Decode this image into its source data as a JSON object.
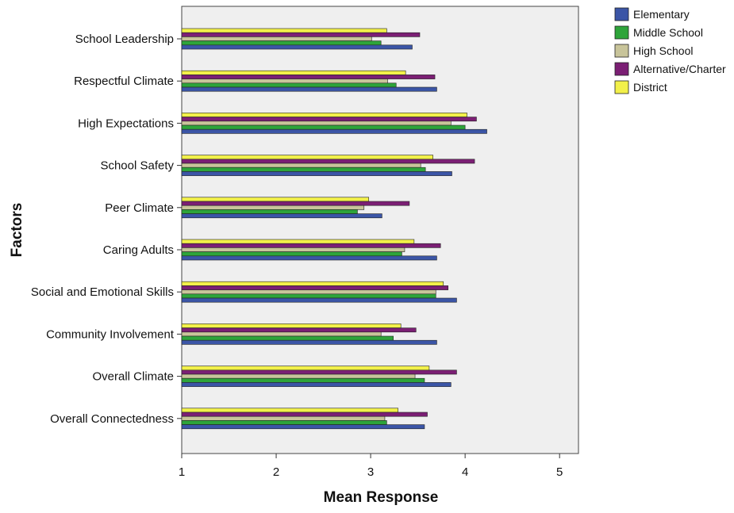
{
  "chart_data": {
    "type": "bar",
    "orientation": "horizontal",
    "title": "",
    "xlabel": "Mean Response",
    "ylabel": "Factors",
    "xlim": [
      1,
      5.2
    ],
    "xticks": [
      1,
      2,
      3,
      4,
      5
    ],
    "grid": false,
    "legend_position": "top-right",
    "categories": [
      "School Leadership",
      "Respectful Climate",
      "High Expectations",
      "School Safety",
      "Peer Climate",
      "Caring Adults",
      "Social and Emotional Skills",
      "Community Involvement",
      "Overall Climate",
      "Overall Connectedness"
    ],
    "series": [
      {
        "name": "Elementary",
        "color": "#3b55a6",
        "values": [
          3.44,
          3.7,
          4.23,
          3.86,
          3.12,
          3.7,
          3.91,
          3.7,
          3.85,
          3.57
        ]
      },
      {
        "name": "Middle School",
        "color": "#2ea43a",
        "values": [
          3.11,
          3.27,
          4.0,
          3.58,
          2.86,
          3.33,
          3.69,
          3.24,
          3.57,
          3.17
        ]
      },
      {
        "name": "High School",
        "color": "#c8c49a",
        "values": [
          3.01,
          3.18,
          3.85,
          3.53,
          2.93,
          3.36,
          3.69,
          3.11,
          3.47,
          3.15
        ]
      },
      {
        "name": "Alternative/Charter",
        "color": "#7b1f74",
        "values": [
          3.52,
          3.68,
          4.12,
          4.1,
          3.41,
          3.74,
          3.82,
          3.48,
          3.91,
          3.6
        ]
      },
      {
        "name": "District",
        "color": "#f2f04a",
        "values": [
          3.17,
          3.37,
          4.02,
          3.66,
          2.98,
          3.46,
          3.77,
          3.32,
          3.62,
          3.29
        ]
      }
    ]
  }
}
